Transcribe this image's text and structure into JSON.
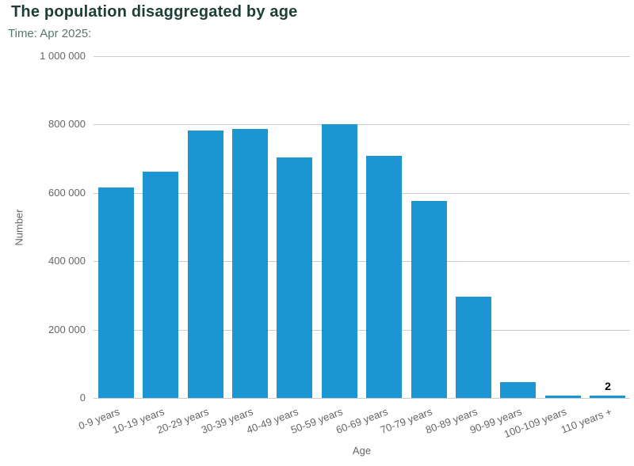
{
  "window": {
    "background": "#ffffff"
  },
  "chart_data": {
    "type": "bar",
    "title": "The population disaggregated by age",
    "subtitle": "Time: Apr 2025:",
    "xlabel": "Age",
    "ylabel": "Number",
    "categories": [
      "0-9 years",
      "10-19 years",
      "20-29 years",
      "30-39 years",
      "40-49 years",
      "50-59 years",
      "60-69 years",
      "70-79 years",
      "80-89 years",
      "90-99 years",
      "100-109 years",
      "110 years +"
    ],
    "values": [
      615000,
      662000,
      783000,
      786000,
      704000,
      800000,
      709000,
      577000,
      296000,
      46000,
      5000,
      2
    ],
    "ylim": [
      0,
      1000000
    ],
    "yticks": [
      {
        "value": 0,
        "label": "0"
      },
      {
        "value": 200000,
        "label": "200 000"
      },
      {
        "value": 400000,
        "label": "400 000"
      },
      {
        "value": 600000,
        "label": "600 000"
      },
      {
        "value": 800000,
        "label": "800 000"
      },
      {
        "value": 1000000,
        "label": "1 000 000"
      }
    ],
    "data_labels": [
      {
        "index": 11,
        "text": "2"
      }
    ],
    "grid": true,
    "legend": "none",
    "colors": {
      "bar": "#1b96d2",
      "grid": "#cccccc",
      "title": "#1f3e37",
      "subtitle": "#587670",
      "axis_text": "#666666",
      "data_label": "#000000"
    }
  }
}
